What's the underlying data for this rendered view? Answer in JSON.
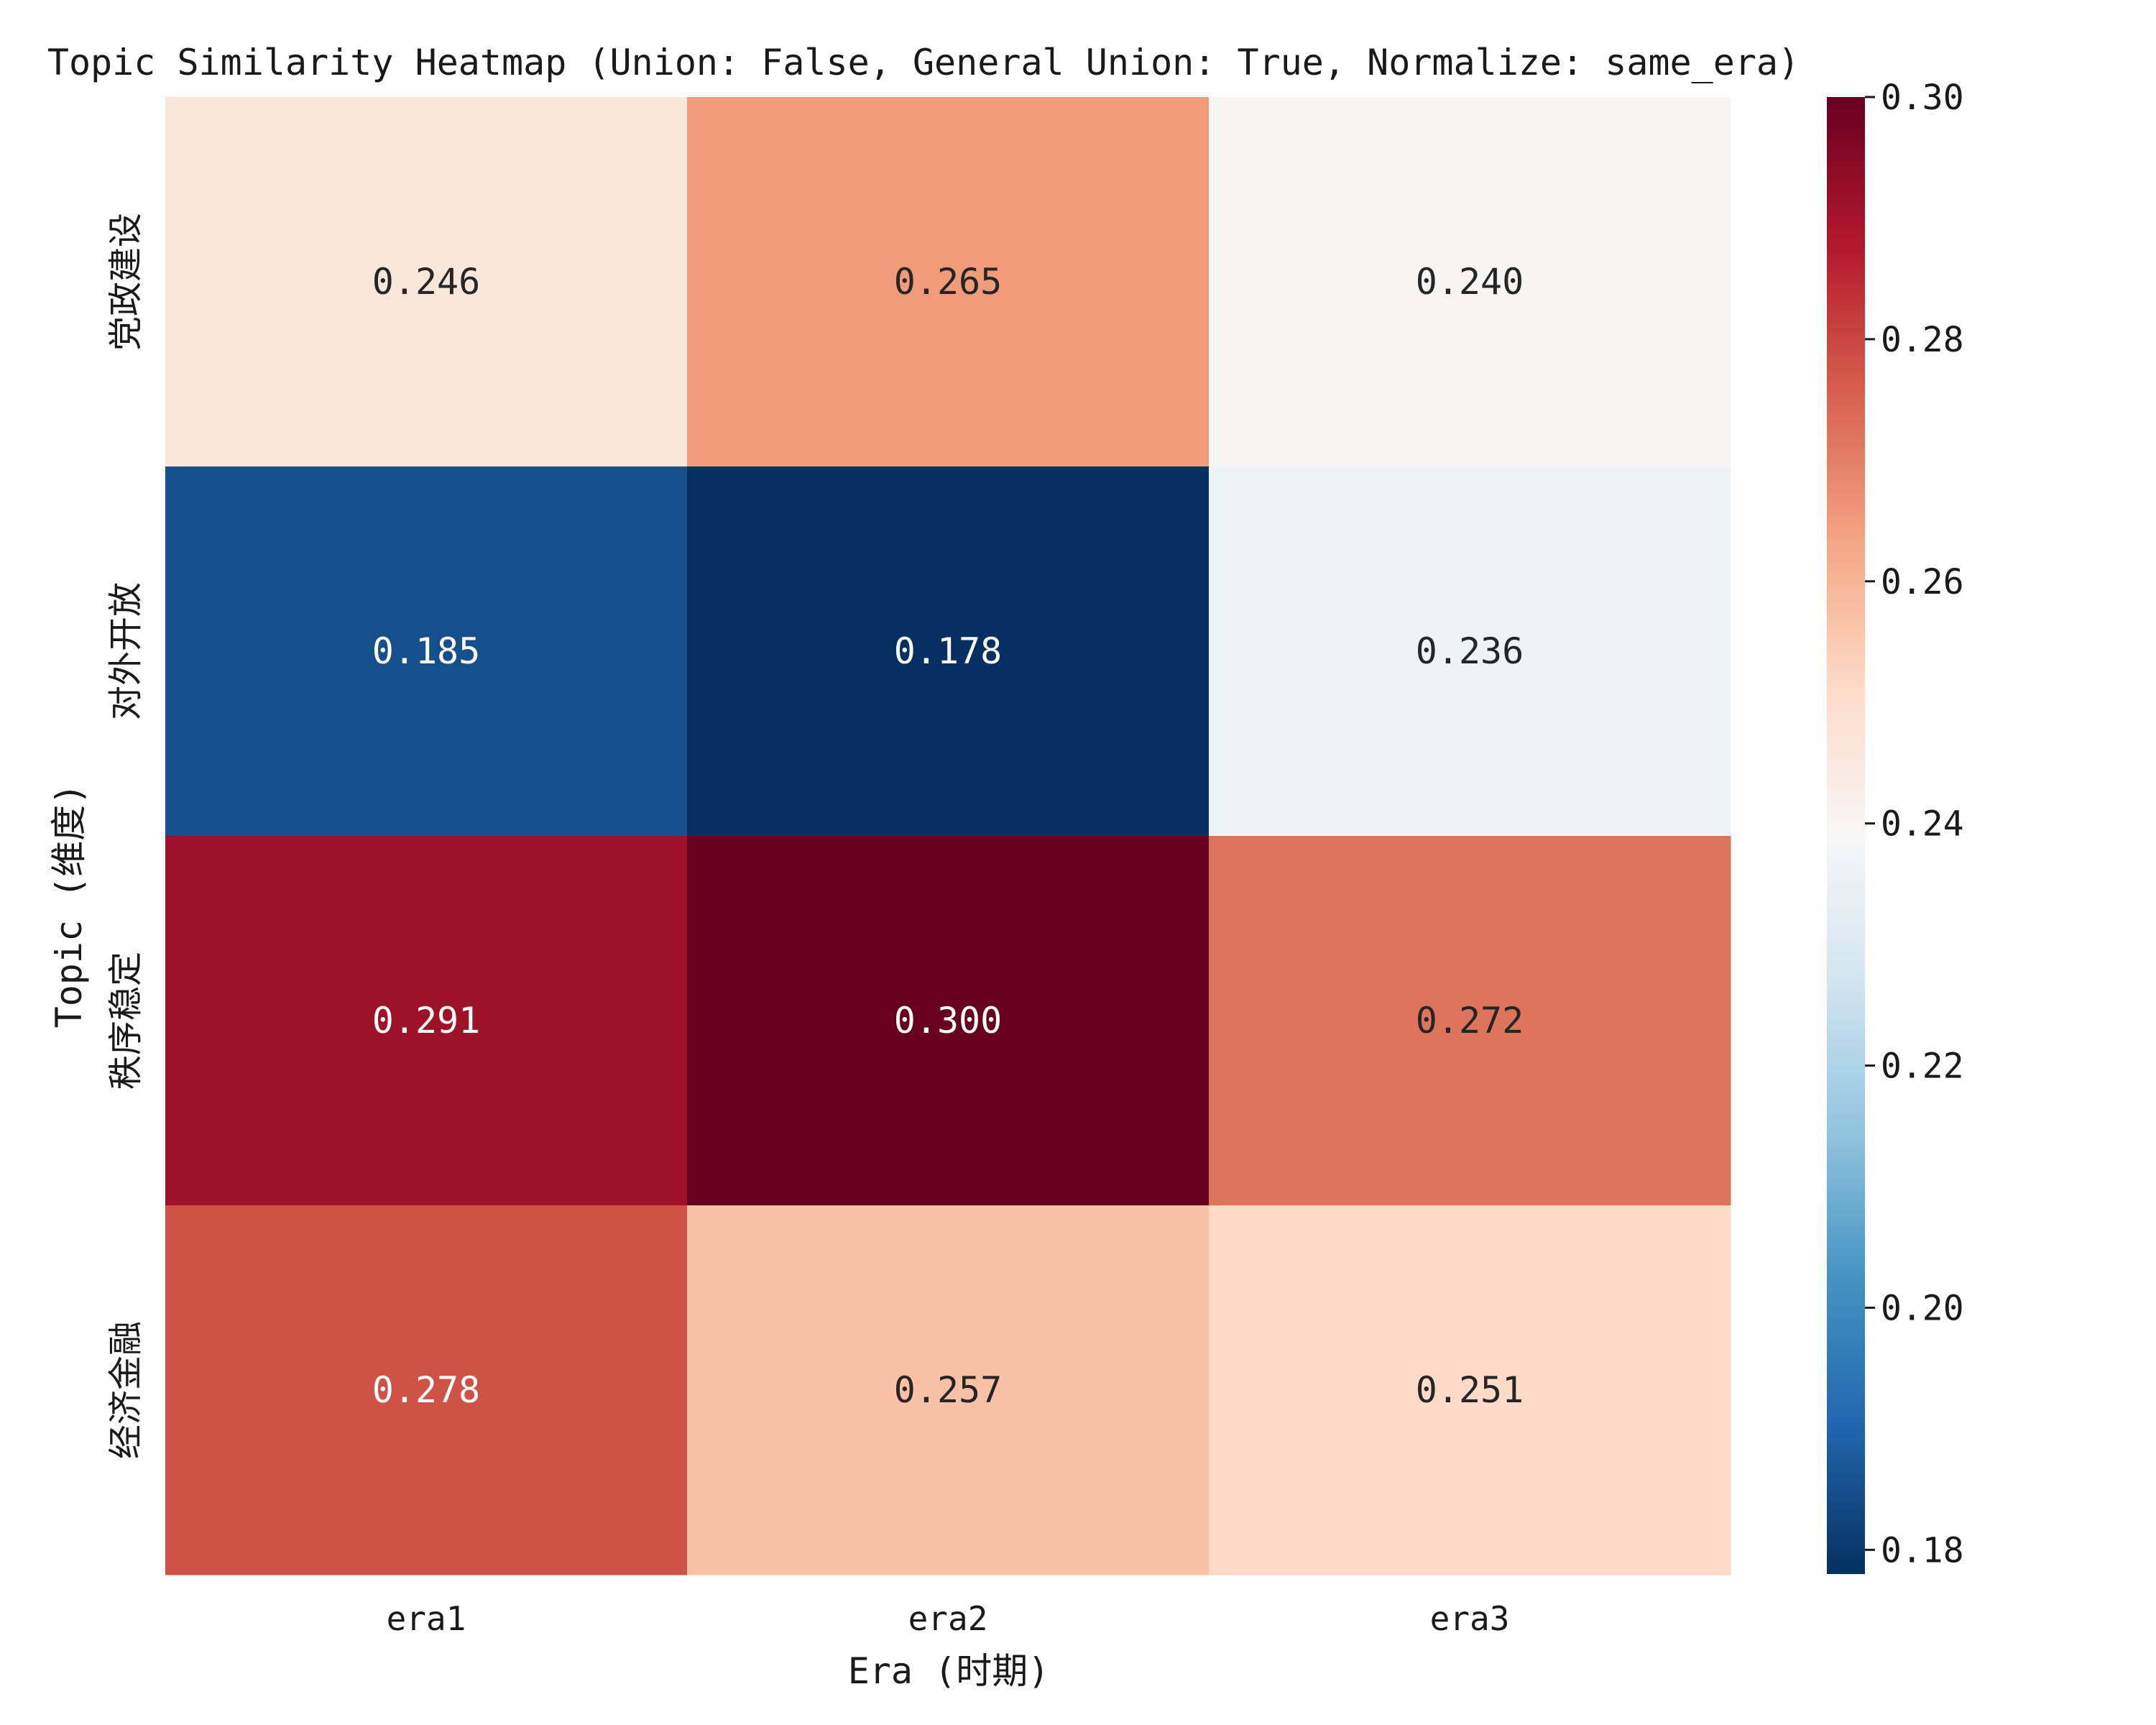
{
  "chart_data": {
    "type": "heatmap",
    "title": "Topic Similarity Heatmap (Union: False, General Union: True, Normalize: same_era)",
    "xlabel": "Era (时期)",
    "ylabel": "Topic (维度)",
    "x_categories": [
      "era1",
      "era2",
      "era3"
    ],
    "y_categories": [
      "党政建设",
      "对外开放",
      "秩序稳定",
      "经济金融"
    ],
    "values": [
      [
        0.246,
        0.265,
        0.24
      ],
      [
        0.185,
        0.178,
        0.236
      ],
      [
        0.291,
        0.3,
        0.272
      ],
      [
        0.278,
        0.257,
        0.251
      ]
    ],
    "value_labels": [
      [
        "0.246",
        "0.265",
        "0.240"
      ],
      [
        "0.185",
        "0.178",
        "0.236"
      ],
      [
        "0.291",
        "0.300",
        "0.272"
      ],
      [
        "0.278",
        "0.257",
        "0.251"
      ]
    ],
    "colorbar": {
      "colormap": "RdBu_r",
      "range": [
        0.178,
        0.3
      ],
      "ticks": [
        0.18,
        0.2,
        0.22,
        0.24,
        0.26,
        0.28,
        0.3
      ],
      "tick_labels": [
        "0.18",
        "0.20",
        "0.22",
        "0.24",
        "0.26",
        "0.28",
        "0.30"
      ]
    },
    "grid": false
  }
}
